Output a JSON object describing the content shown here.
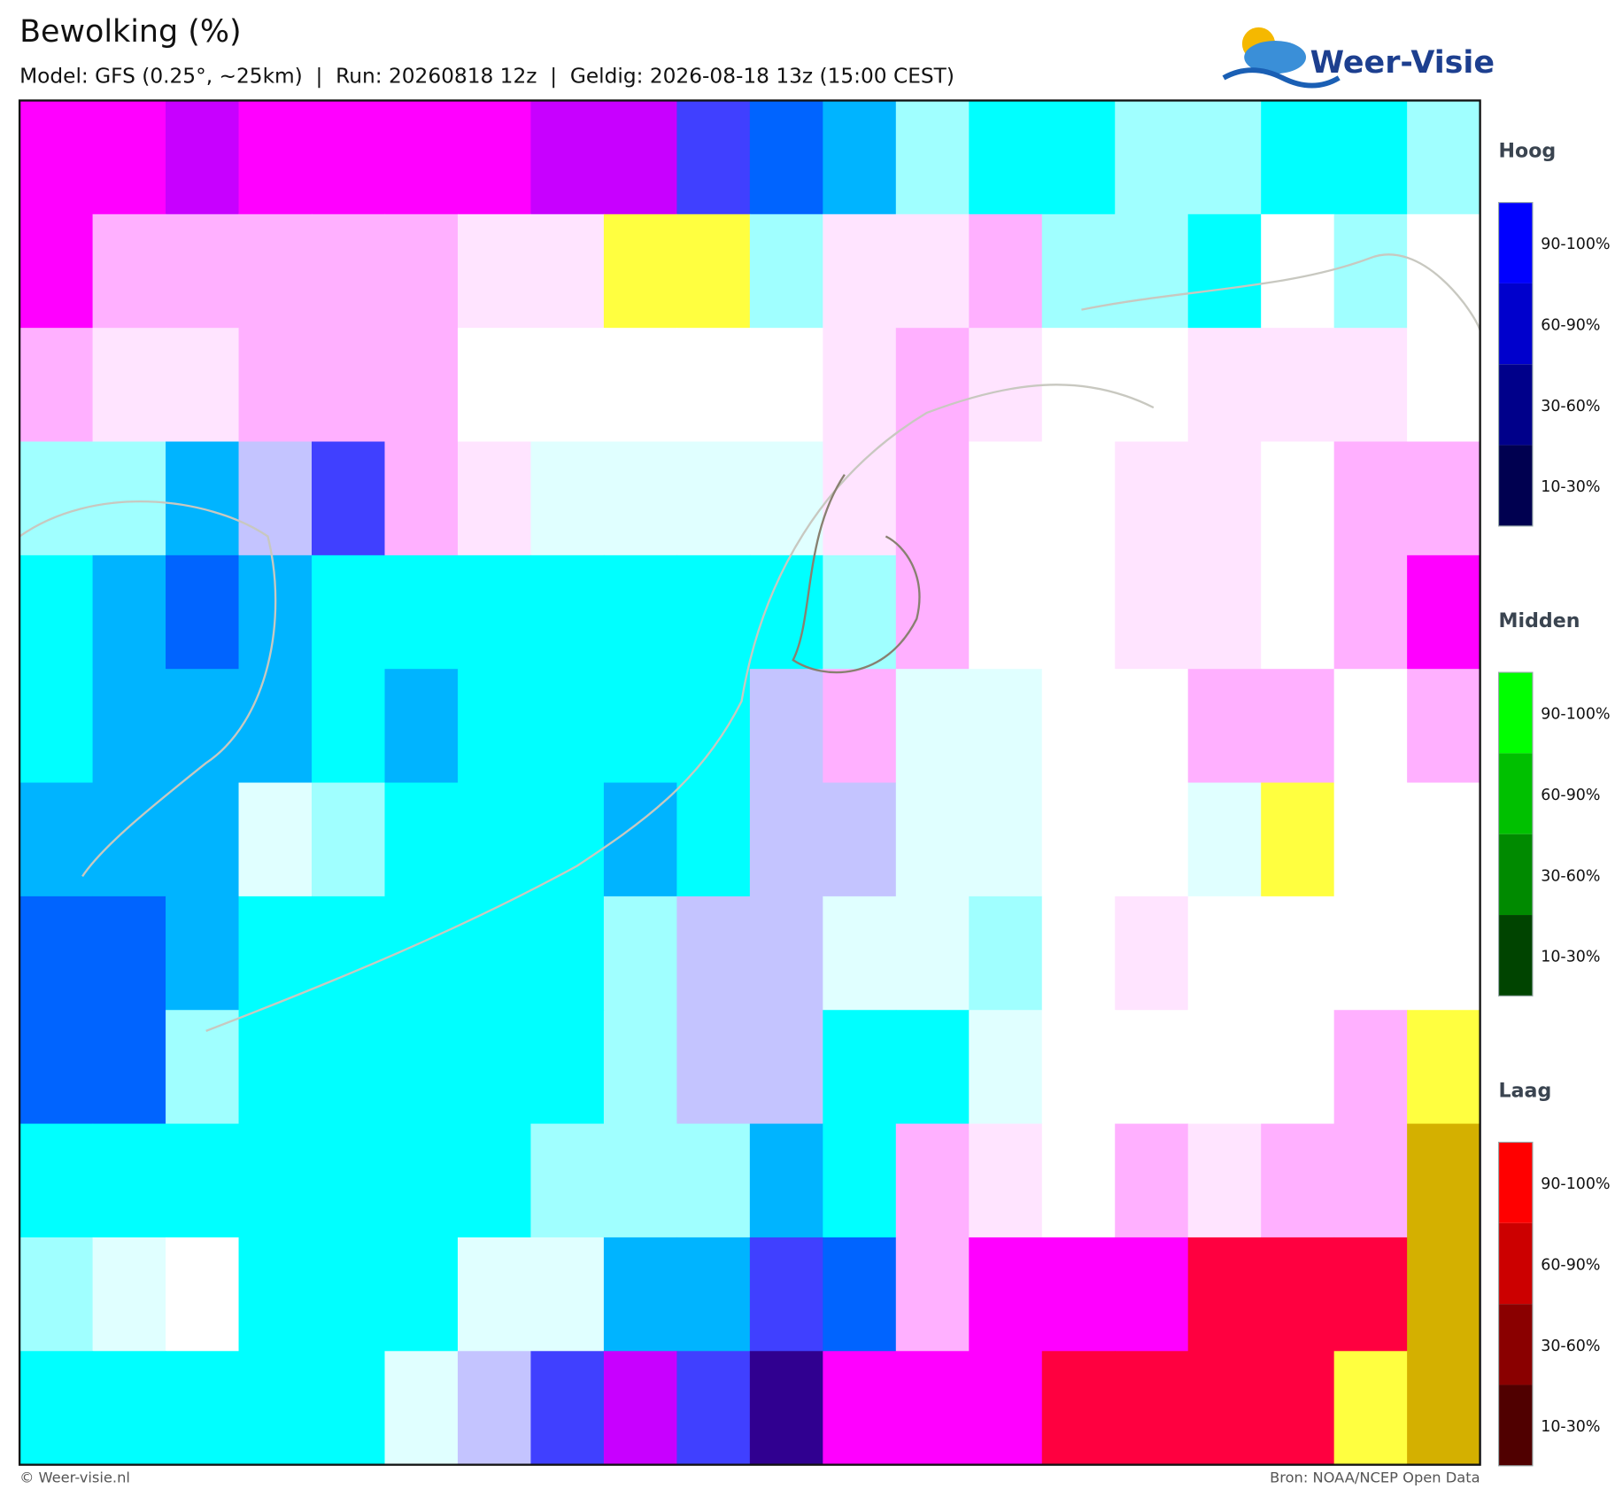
{
  "header": {
    "title": "Bewolking (%)",
    "subtitle": "Model: GFS (0.25°, ~25km)  |  Run: 20260818 12z  |  Geldig: 2026-08-18 13z (15:00 CEST)",
    "logo": "Weer-Visie"
  },
  "legend": [
    {
      "title": "Hoog",
      "labels": [
        "90-100%",
        "60-90%",
        "30-60%",
        "10-30%"
      ],
      "colors": [
        "#0000ff",
        "#0000cc",
        "#00008a",
        "#000050"
      ]
    },
    {
      "title": "Midden",
      "labels": [
        "90-100%",
        "60-90%",
        "30-60%",
        "10-30%"
      ],
      "colors": [
        "#00ff00",
        "#00c000",
        "#008a00",
        "#004400"
      ]
    },
    {
      "title": "Laag",
      "labels": [
        "90-100%",
        "60-90%",
        "30-60%",
        "10-30%"
      ],
      "colors": [
        "#ff0000",
        "#cc0000",
        "#8a0000",
        "#500000"
      ]
    }
  ],
  "footer": {
    "left": "© Weer-visie.nl",
    "right": "Bron: NOAA/NCEP Open Data"
  }
}
